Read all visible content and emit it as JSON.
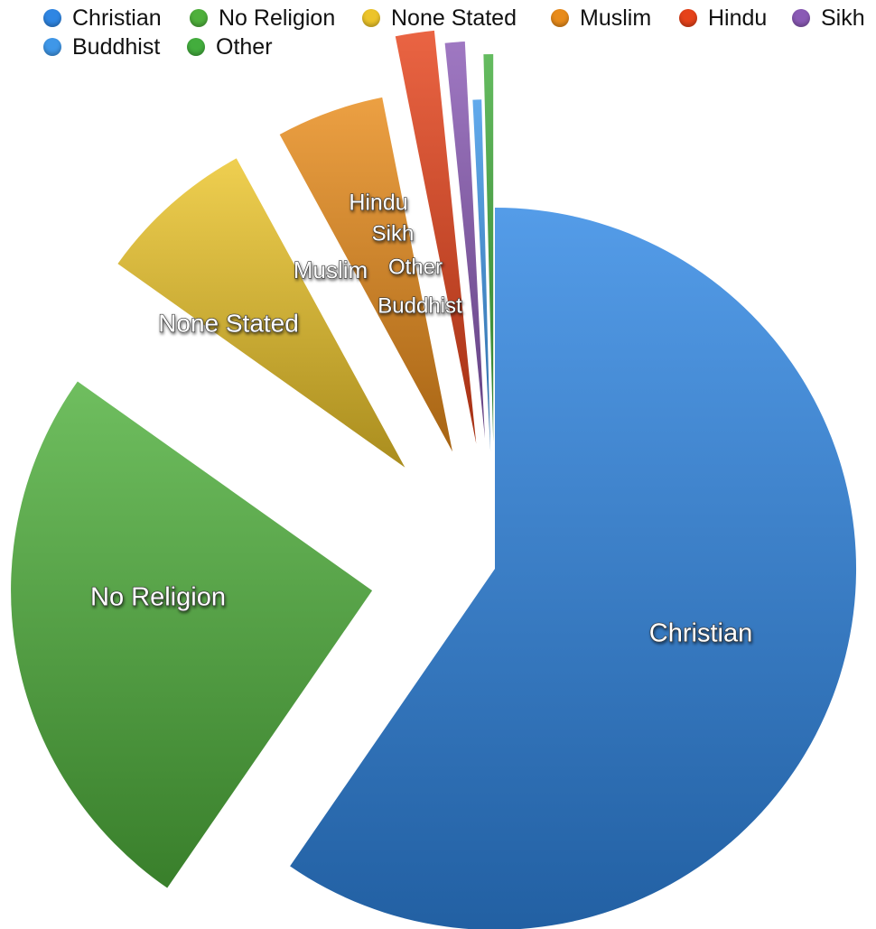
{
  "chart_data": {
    "type": "pie",
    "title": "",
    "legend_position": "top",
    "series": [
      {
        "name": "Christian",
        "value": 59.3,
        "color": "#2f86e3"
      },
      {
        "name": "No Religion",
        "value": 25.1,
        "color": "#4fb03c"
      },
      {
        "name": "None Stated",
        "value": 7.2,
        "color": "#ecc42a"
      },
      {
        "name": "Muslim",
        "value": 4.8,
        "color": "#e88b1a"
      },
      {
        "name": "Hindu",
        "value": 1.5,
        "color": "#e5421a"
      },
      {
        "name": "Sikh",
        "value": 0.8,
        "color": "#8a5ab5"
      },
      {
        "name": "Buddhist",
        "value": 0.4,
        "color": "#3f97e8"
      },
      {
        "name": "Other",
        "value": 0.4,
        "color": "#43ad3d"
      }
    ]
  }
}
